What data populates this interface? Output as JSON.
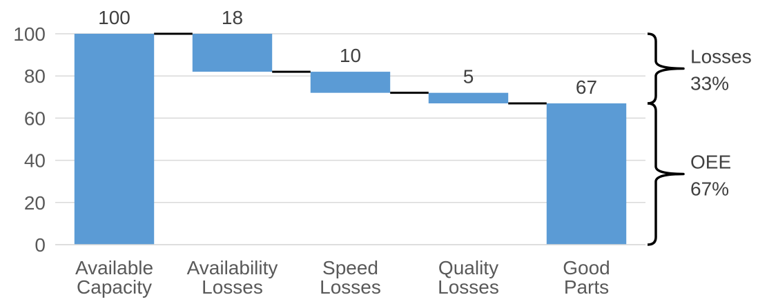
{
  "chart_data": {
    "type": "bar",
    "subtype": "waterfall",
    "title": "",
    "xlabel": "",
    "ylabel": "",
    "ylim": [
      0,
      100
    ],
    "yticks": [
      0,
      20,
      40,
      60,
      80,
      100
    ],
    "grid": true,
    "categories": [
      {
        "line1": "Available",
        "line2": "Capacity"
      },
      {
        "line1": "Availability",
        "line2": "Losses"
      },
      {
        "line1": "Speed",
        "line2": "Losses"
      },
      {
        "line1": "Quality",
        "line2": "Losses"
      },
      {
        "line1": "Good",
        "line2": "Parts"
      }
    ],
    "bars": [
      {
        "kind": "total",
        "base": 0,
        "top": 100,
        "label": "100"
      },
      {
        "kind": "loss",
        "base": 82,
        "top": 100,
        "label": "18"
      },
      {
        "kind": "loss",
        "base": 72,
        "top": 82,
        "label": "10"
      },
      {
        "kind": "loss",
        "base": 67,
        "top": 72,
        "label": "5"
      },
      {
        "kind": "total",
        "base": 0,
        "top": 67,
        "label": "67"
      }
    ],
    "bar_color": "#5b9bd5",
    "connector_color": "#000000",
    "brackets": [
      {
        "from": 67,
        "to": 100,
        "line1": "Losses",
        "line2": "33%"
      },
      {
        "from": 0,
        "to": 67,
        "line1": "OEE",
        "line2": "67%"
      }
    ]
  }
}
